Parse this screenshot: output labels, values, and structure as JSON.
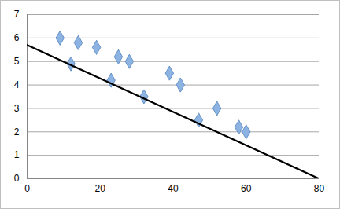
{
  "chart_data": {
    "type": "scatter",
    "series": [
      {
        "type": "scatter",
        "color": "#8db3e2",
        "marker": "diamond",
        "x": [
          9,
          12,
          14,
          19,
          23,
          25,
          28,
          32,
          39,
          42,
          47,
          52,
          58,
          60
        ],
        "values": [
          6.0,
          4.9,
          5.8,
          5.6,
          4.2,
          5.2,
          5.0,
          3.5,
          4.5,
          4.0,
          2.5,
          3.0,
          2.2,
          2.0
        ]
      },
      {
        "type": "line",
        "color": "#000000",
        "line_style": "solid",
        "x": [
          0,
          80
        ],
        "values": [
          5.7,
          0
        ]
      }
    ],
    "xlim": [
      0,
      80
    ],
    "xticks": [
      0,
      20,
      40,
      60,
      80
    ],
    "ylim": [
      0,
      7
    ],
    "yticks": [
      0,
      1,
      2,
      3,
      4,
      5,
      6,
      7
    ],
    "grid": "y"
  }
}
